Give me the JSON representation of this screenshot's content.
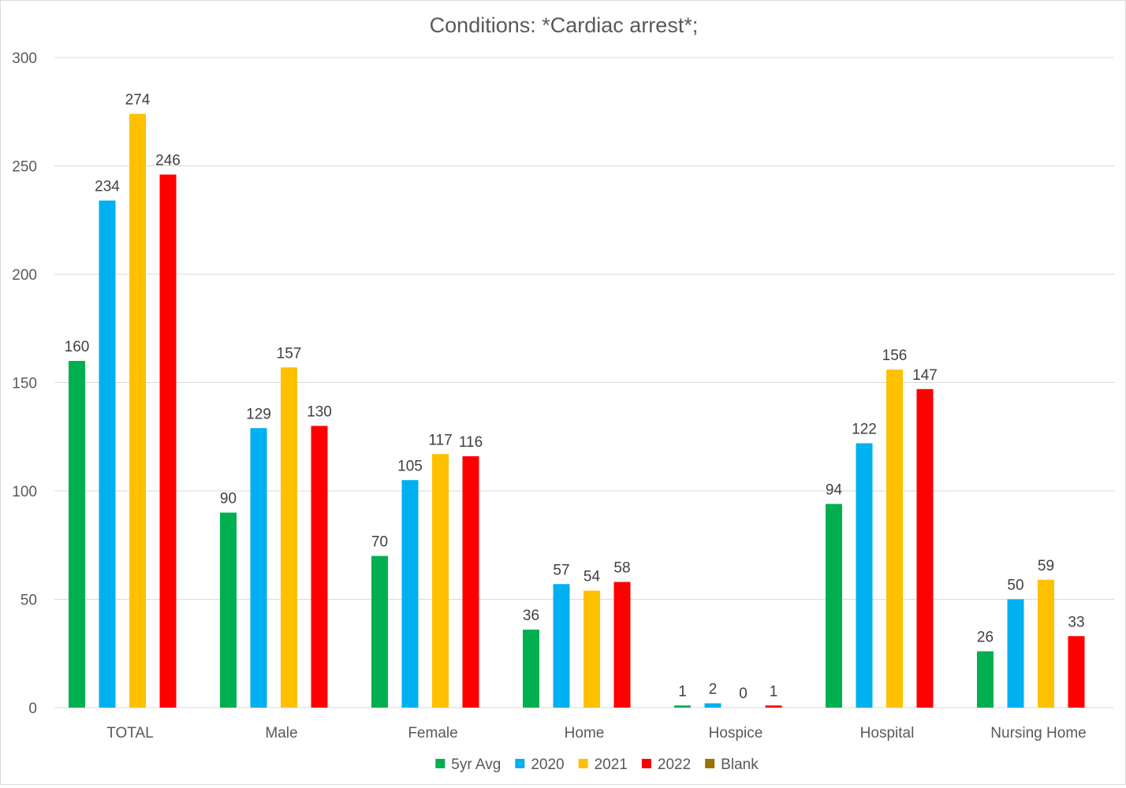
{
  "chart_data": {
    "type": "bar",
    "title": "Conditions: *Cardiac arrest*;",
    "xlabel": "",
    "ylabel": "",
    "ylim": [
      0,
      300
    ],
    "yticks": [
      0,
      50,
      100,
      150,
      200,
      250,
      300
    ],
    "grid": true,
    "legend_position": "bottom",
    "categories": [
      "TOTAL",
      "Male",
      "Female",
      "Home",
      "Hospice",
      "Hospital",
      "Nursing Home"
    ],
    "series": [
      {
        "name": "5yr Avg",
        "color": "#00b050",
        "values": [
          160,
          90,
          70,
          36,
          1,
          94,
          26
        ]
      },
      {
        "name": "2020",
        "color": "#00b0f0",
        "values": [
          234,
          129,
          105,
          57,
          2,
          122,
          50
        ]
      },
      {
        "name": "2021",
        "color": "#ffc000",
        "values": [
          274,
          157,
          117,
          54,
          0,
          156,
          59
        ]
      },
      {
        "name": "2022",
        "color": "#ff0000",
        "values": [
          246,
          130,
          116,
          58,
          1,
          147,
          33
        ]
      },
      {
        "name": "Blank",
        "color": "#997300",
        "values": [
          null,
          null,
          null,
          null,
          null,
          null,
          null
        ]
      }
    ]
  }
}
